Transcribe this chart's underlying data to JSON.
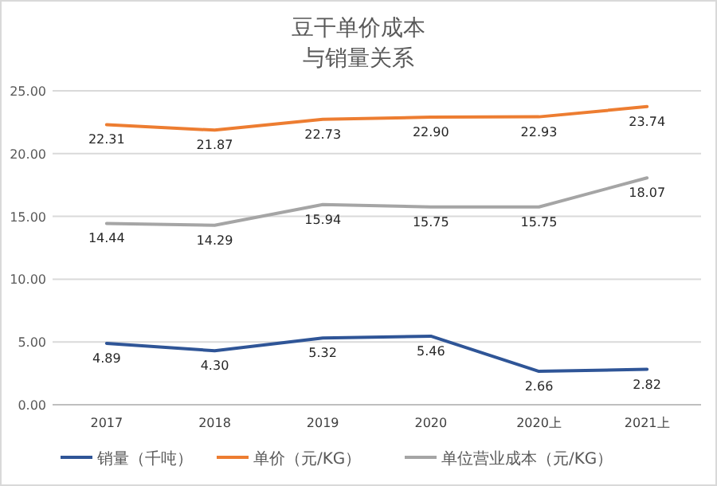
{
  "chart_data": {
    "type": "line",
    "title": "豆干单价成本",
    "subtitle": "与销量关系",
    "categories": [
      "2017",
      "2018",
      "2019",
      "2020",
      "2020上",
      "2021上"
    ],
    "series": [
      {
        "name": "销量（千吨）",
        "color": "#2f5597",
        "values": [
          4.89,
          4.3,
          5.32,
          5.46,
          2.66,
          2.82
        ],
        "value_labels": [
          "4.89",
          "4.30",
          "5.32",
          "5.46",
          "2.66",
          "2.82"
        ]
      },
      {
        "name": "单价（元/KG）",
        "color": "#ed7d31",
        "values": [
          22.31,
          21.87,
          22.73,
          22.9,
          22.93,
          23.74
        ],
        "value_labels": [
          "22.31",
          "21.87",
          "22.73",
          "22.90",
          "22.93",
          "23.74"
        ]
      },
      {
        "name": "单位营业成本（元/KG）",
        "color": "#a5a5a5",
        "values": [
          14.44,
          14.29,
          15.94,
          15.75,
          15.75,
          18.07
        ],
        "value_labels": [
          "14.44",
          "14.29",
          "15.94",
          "15.75",
          "15.75",
          "18.07"
        ]
      }
    ],
    "ylim": [
      0,
      25
    ],
    "yticks": [
      {
        "value": 0,
        "label": "0.00"
      },
      {
        "value": 5,
        "label": "5.00"
      },
      {
        "value": 10,
        "label": "10.00"
      },
      {
        "value": 15,
        "label": "15.00"
      },
      {
        "value": 20,
        "label": "20.00"
      },
      {
        "value": 25,
        "label": "25.00"
      }
    ],
    "grid": "y",
    "legend": "bottom",
    "marker": "none",
    "line_style": "solid"
  }
}
